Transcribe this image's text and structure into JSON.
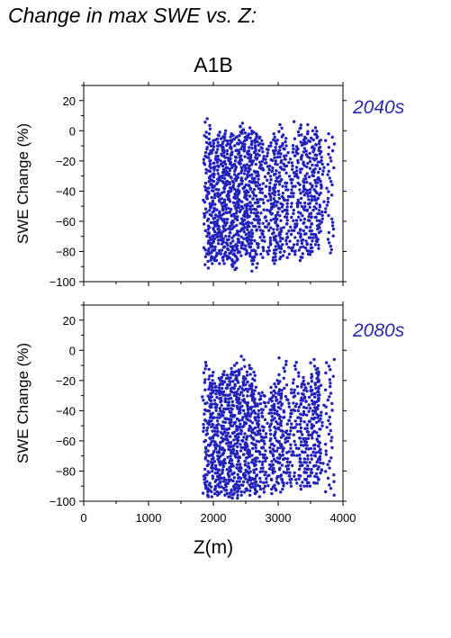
{
  "figure_title": "Change in max SWE vs. Z:",
  "chart_data": [
    {
      "type": "scatter",
      "title": "A1B",
      "panel_label": "2040s",
      "xlabel": "",
      "ylabel": "SWE Change (%)",
      "xlim": [
        0,
        4000
      ],
      "ylim": [
        -100,
        30
      ],
      "xticks": [
        0,
        1000,
        2000,
        3000,
        4000
      ],
      "yticks": [
        -100,
        -80,
        -60,
        -40,
        -20,
        0,
        20
      ],
      "color": "#2222bb",
      "columns": [
        {
          "x": 1900,
          "ymin": -91,
          "ymax": 8
        },
        {
          "x": 1935,
          "ymin": -88,
          "ymax": -2
        },
        {
          "x": 1965,
          "ymin": -86,
          "ymax": -6
        },
        {
          "x": 2000,
          "ymin": -85,
          "ymax": -8
        },
        {
          "x": 2040,
          "ymin": -88,
          "ymax": -10
        },
        {
          "x": 2080,
          "ymin": -86,
          "ymax": -3
        },
        {
          "x": 2120,
          "ymin": -84,
          "ymax": -1
        },
        {
          "x": 2155,
          "ymin": -86,
          "ymax": -4
        },
        {
          "x": 2190,
          "ymin": -85,
          "ymax": -2
        },
        {
          "x": 2230,
          "ymin": -88,
          "ymax": 0
        },
        {
          "x": 2270,
          "ymin": -90,
          "ymax": -3
        },
        {
          "x": 2305,
          "ymin": -91,
          "ymax": -4
        },
        {
          "x": 2345,
          "ymin": -92,
          "ymax": -2
        },
        {
          "x": 2380,
          "ymin": -86,
          "ymax": -1
        },
        {
          "x": 2420,
          "ymin": -85,
          "ymax": 5
        },
        {
          "x": 2460,
          "ymin": -80,
          "ymax": 3
        },
        {
          "x": 2500,
          "ymin": -83,
          "ymax": 0
        },
        {
          "x": 2540,
          "ymin": -84,
          "ymax": 2
        },
        {
          "x": 2580,
          "ymin": -86,
          "ymax": -2
        },
        {
          "x": 2620,
          "ymin": -88,
          "ymax": -1
        },
        {
          "x": 2660,
          "ymin": -93,
          "ymax": -4
        },
        {
          "x": 2700,
          "ymin": -82,
          "ymax": -2
        },
        {
          "x": 2740,
          "ymin": -84,
          "ymax": -5
        },
        {
          "x": 2830,
          "ymin": -80,
          "ymax": -8
        },
        {
          "x": 2870,
          "ymin": -84,
          "ymax": -10
        },
        {
          "x": 2940,
          "ymin": -88,
          "ymax": -2
        },
        {
          "x": 2980,
          "ymin": -86,
          "ymax": -6
        },
        {
          "x": 3020,
          "ymin": -85,
          "ymax": -4
        },
        {
          "x": 3070,
          "ymin": -80,
          "ymax": 4
        },
        {
          "x": 3150,
          "ymin": -84,
          "ymax": -10
        },
        {
          "x": 3200,
          "ymin": -80,
          "ymax": -12
        },
        {
          "x": 3290,
          "ymin": -82,
          "ymax": 6
        },
        {
          "x": 3350,
          "ymin": -86,
          "ymax": -6
        },
        {
          "x": 3410,
          "ymin": -84,
          "ymax": 4
        },
        {
          "x": 3460,
          "ymin": -80,
          "ymax": -2
        },
        {
          "x": 3500,
          "ymin": -82,
          "ymax": -6
        },
        {
          "x": 3560,
          "ymin": -80,
          "ymax": 2
        },
        {
          "x": 3600,
          "ymin": -78,
          "ymax": 0
        },
        {
          "x": 3640,
          "ymin": -72,
          "ymax": -4
        },
        {
          "x": 3800,
          "ymin": -81,
          "ymax": -2
        }
      ]
    },
    {
      "type": "scatter",
      "title": "",
      "panel_label": "2080s",
      "xlabel": "Z(m)",
      "ylabel": "SWE Change (%)",
      "xlim": [
        0,
        4000
      ],
      "ylim": [
        -100,
        30
      ],
      "xticks": [
        0,
        1000,
        2000,
        3000,
        4000
      ],
      "yticks": [
        -100,
        -80,
        -60,
        -40,
        -20,
        0,
        20
      ],
      "color": "#2222bb",
      "columns": [
        {
          "x": 1900,
          "ymin": -97,
          "ymax": -8
        },
        {
          "x": 1935,
          "ymin": -96,
          "ymax": -10
        },
        {
          "x": 1965,
          "ymin": -96,
          "ymax": -20
        },
        {
          "x": 2000,
          "ymin": -95,
          "ymax": -22
        },
        {
          "x": 2040,
          "ymin": -97,
          "ymax": -24
        },
        {
          "x": 2080,
          "ymin": -96,
          "ymax": -20
        },
        {
          "x": 2120,
          "ymin": -95,
          "ymax": -18
        },
        {
          "x": 2155,
          "ymin": -95,
          "ymax": -14
        },
        {
          "x": 2190,
          "ymin": -96,
          "ymax": -16
        },
        {
          "x": 2230,
          "ymin": -97,
          "ymax": -12
        },
        {
          "x": 2270,
          "ymin": -97,
          "ymax": -16
        },
        {
          "x": 2305,
          "ymin": -98,
          "ymax": -14
        },
        {
          "x": 2345,
          "ymin": -98,
          "ymax": -18
        },
        {
          "x": 2380,
          "ymin": -96,
          "ymax": -10
        },
        {
          "x": 2420,
          "ymin": -96,
          "ymax": -4
        },
        {
          "x": 2460,
          "ymin": -92,
          "ymax": -14
        },
        {
          "x": 2500,
          "ymin": -94,
          "ymax": -12
        },
        {
          "x": 2540,
          "ymin": -93,
          "ymax": -16
        },
        {
          "x": 2580,
          "ymin": -95,
          "ymax": -10
        },
        {
          "x": 2620,
          "ymin": -96,
          "ymax": -20
        },
        {
          "x": 2660,
          "ymin": -97,
          "ymax": -24
        },
        {
          "x": 2700,
          "ymin": -92,
          "ymax": -28
        },
        {
          "x": 2740,
          "ymin": -94,
          "ymax": -30
        },
        {
          "x": 2830,
          "ymin": -90,
          "ymax": -28
        },
        {
          "x": 2870,
          "ymin": -92,
          "ymax": -30
        },
        {
          "x": 2940,
          "ymin": -95,
          "ymax": -20
        },
        {
          "x": 2980,
          "ymin": -94,
          "ymax": -26
        },
        {
          "x": 3020,
          "ymin": -92,
          "ymax": -22
        },
        {
          "x": 3070,
          "ymin": -88,
          "ymax": -5
        },
        {
          "x": 3150,
          "ymin": -90,
          "ymax": -26
        },
        {
          "x": 3200,
          "ymin": -88,
          "ymax": -28
        },
        {
          "x": 3290,
          "ymin": -88,
          "ymax": -8
        },
        {
          "x": 3350,
          "ymin": -92,
          "ymax": -22
        },
        {
          "x": 3410,
          "ymin": -90,
          "ymax": -18
        },
        {
          "x": 3460,
          "ymin": -90,
          "ymax": -16
        },
        {
          "x": 3500,
          "ymin": -88,
          "ymax": -22
        },
        {
          "x": 3560,
          "ymin": -90,
          "ymax": -6
        },
        {
          "x": 3600,
          "ymin": -88,
          "ymax": -12
        },
        {
          "x": 3640,
          "ymin": -84,
          "ymax": -16
        },
        {
          "x": 3800,
          "ymin": -96,
          "ymax": -6
        }
      ]
    }
  ]
}
